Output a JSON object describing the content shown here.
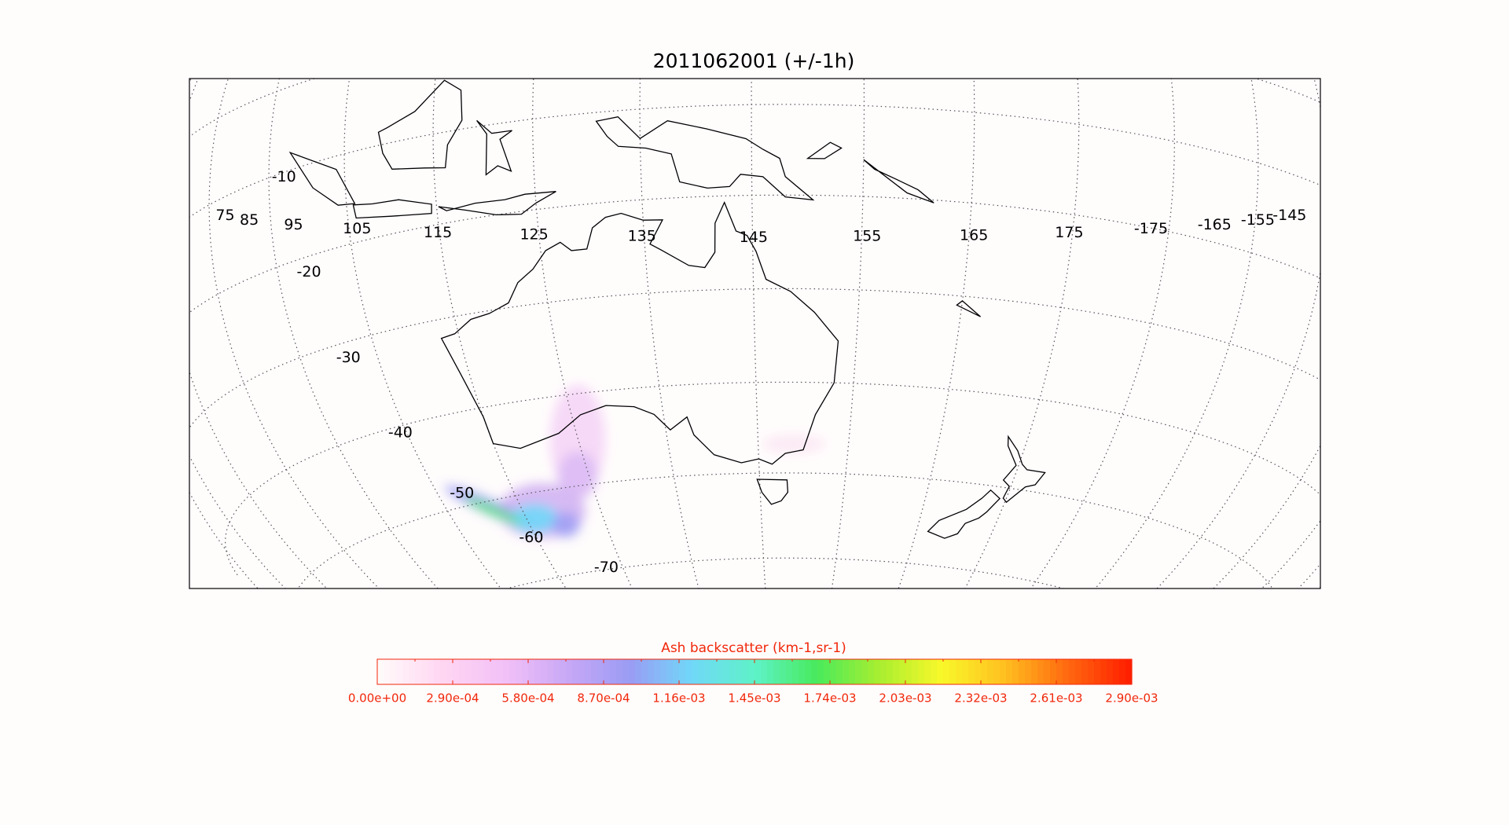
{
  "map": {
    "title": "2011062001 (+/-1h)",
    "lat_labels": [
      -10,
      -20,
      -30,
      -40,
      -50,
      -60,
      -70
    ],
    "lon_labels": [
      75,
      85,
      95,
      105,
      115,
      125,
      135,
      145,
      155,
      165,
      175,
      -175,
      -165,
      -155,
      -145
    ],
    "colorbar": {
      "title": "Ash backscatter (km-1,sr-1)",
      "lim": [
        0,
        0.0029
      ],
      "ticks": [
        {
          "value": 0,
          "label": "0.00e+00"
        },
        {
          "value": 0.00029,
          "label": "2.90e-04"
        },
        {
          "value": 0.00058,
          "label": "5.80e-04"
        },
        {
          "value": 0.00087,
          "label": "8.70e-04"
        },
        {
          "value": 0.00116,
          "label": "1.16e-03"
        },
        {
          "value": 0.00145,
          "label": "1.45e-03"
        },
        {
          "value": 0.00174,
          "label": "1.74e-03"
        },
        {
          "value": 0.00203,
          "label": "2.03e-03"
        },
        {
          "value": 0.00232,
          "label": "2.32e-03"
        },
        {
          "value": 0.00261,
          "label": "2.61e-03"
        },
        {
          "value": 0.0029,
          "label": "2.90e-03"
        }
      ],
      "colors": [
        "#fffafa",
        "#ffd6f2",
        "#f2c0f7",
        "#c8a8f6",
        "#9a9cf4",
        "#70d8f8",
        "#5ef2c8",
        "#48ea5c",
        "#a8ee30",
        "#f8f82a",
        "#ffc020",
        "#ff6a10",
        "#ff2000"
      ]
    }
  }
}
